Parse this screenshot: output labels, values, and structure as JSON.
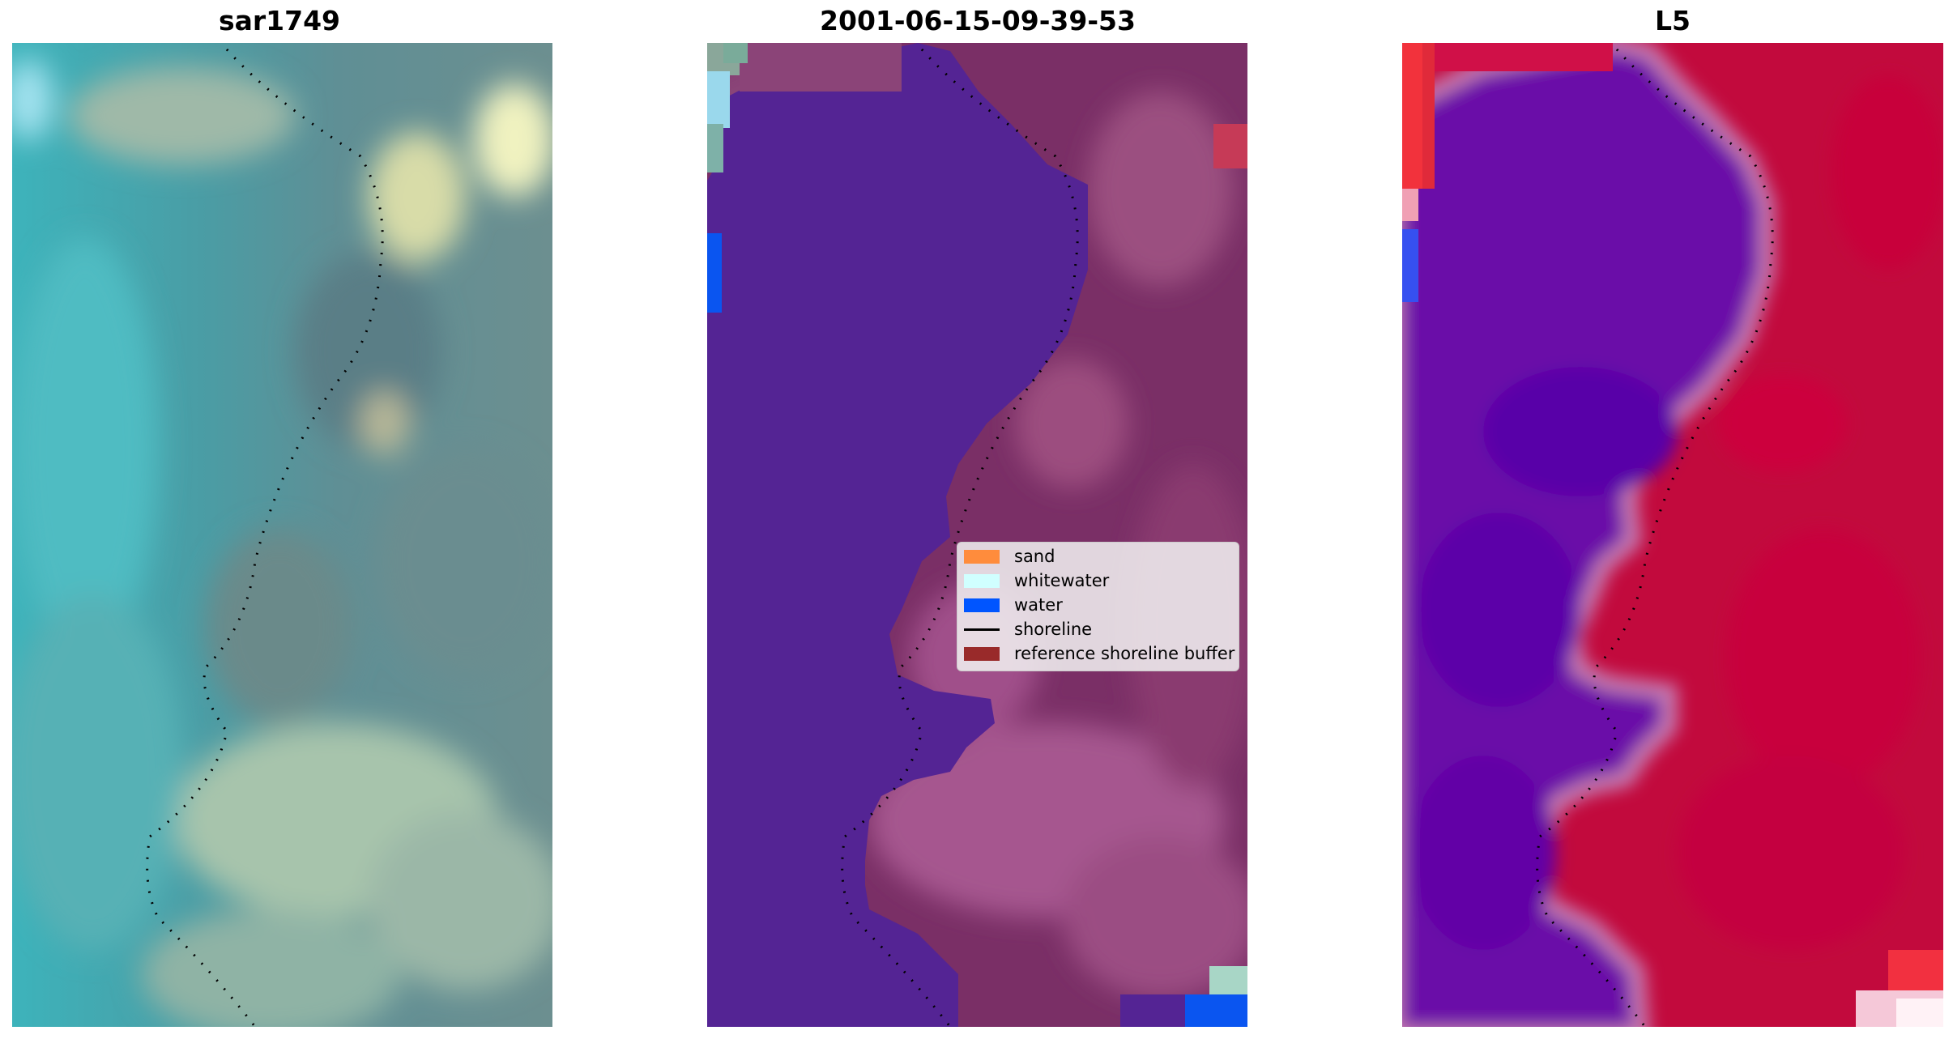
{
  "panels": [
    {
      "title": "sar1749",
      "image": "true-colour satellite image"
    },
    {
      "title": "2001-06-15-09-39-53",
      "image": "classified image"
    },
    {
      "title": "L5",
      "image": "index image"
    }
  ],
  "legend": {
    "items": [
      {
        "label": "sand",
        "kind": "patch",
        "color": "#ff8c3c"
      },
      {
        "label": "whitewater",
        "kind": "patch",
        "color": "#d0ffff"
      },
      {
        "label": "water",
        "kind": "patch",
        "color": "#0055ff"
      },
      {
        "label": "shoreline",
        "kind": "line",
        "color": "#000000"
      },
      {
        "label": "reference shoreline buffer",
        "kind": "patch",
        "color": "#992a2a"
      }
    ]
  },
  "colors": {
    "classified_sea": "#542494",
    "classified_land": "#7a2f66",
    "index_low": "#6000a8",
    "index_high": "#c4003a",
    "rgb_water": "#3aa7b2",
    "rgb_land": "#8ca89a"
  }
}
